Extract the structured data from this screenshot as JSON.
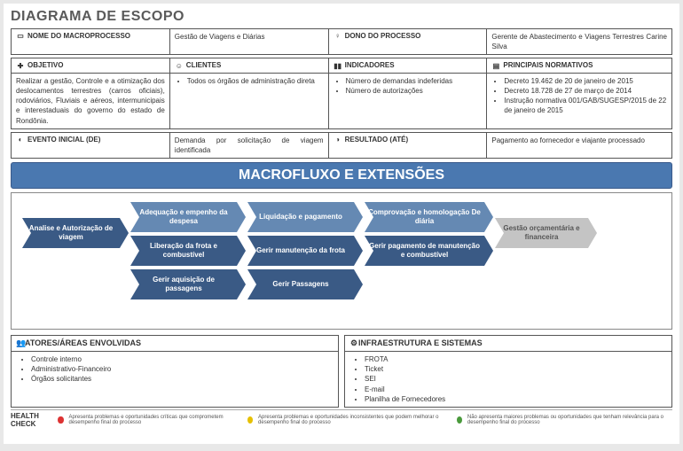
{
  "title": "DIAGRAMA DE ESCOPO",
  "row1": {
    "macro_label": "NOME DO MACROPROCESSO",
    "macro_value": "Gestão de Viagens e Diárias",
    "owner_label": "DONO DO PROCESSO",
    "owner_value": "Gerente de Abastecimento e Viagens Terrestres Carine Silva"
  },
  "row2_hdr": {
    "objetivo": "OBJETIVO",
    "clientes": "CLIENTES",
    "indicadores": "INDICADORES",
    "normativos": "PRINCIPAIS NORMATIVOS"
  },
  "row2_body": {
    "objetivo": "Realizar a gestão, Controle e a otimização dos deslocamentos terrestres (carros oficiais), rodoviários, Fluviais e aéreos, intermunicipais e interestaduais do governo do estado de Rondônia.",
    "clientes": [
      "Todos os órgãos de administração direta"
    ],
    "indicadores": [
      "Número de demandas indeferidas",
      "Número de autorizações"
    ],
    "normativos": [
      "Decreto 19.462 de 20 de janeiro de 2015",
      "Decreto 18.728 de 27 de março de 2014",
      "Instrução normativa 001/GAB/SUGESP/2015 de 22 de janeiro de 2015"
    ]
  },
  "row3": {
    "evento_label": "EVENTO INICIAL (DE)",
    "evento_value": "Demanda por solicitação de viagem identificada",
    "resultado_label": "RESULTADO (ATÉ)",
    "resultado_value": "Pagamento ao fornecedor e viajante processado"
  },
  "banner": "MACROFLUXO E EXTENSÕES",
  "flow": {
    "c0": "Analise e Autorização de viagem",
    "c1": [
      "Adequação e empenho da despesa",
      "Liberação da frota e combustível",
      "Gerir aquisição de passagens"
    ],
    "c2": [
      "Liquidação e pagamento",
      "Gerir manutenção da frota",
      "Gerir  Passagens"
    ],
    "c3": [
      "Comprovação e homologação De diária",
      "Gerir pagamento de manutenção e combustível"
    ],
    "c4": "Gestão orçamentária e financeira"
  },
  "bottom": {
    "atores_label": "ATORES/ÁREAS ENVOLVIDAS",
    "atores": [
      "Controle interno",
      "Administrativo-Financeiro",
      "Órgãos solicitantes"
    ],
    "infra_label": "INFRAESTRUTURA E SISTEMAS",
    "infra": [
      "FROTA",
      "Ticket",
      "SEI",
      "E-mail",
      "Planilha de Fornecedores"
    ]
  },
  "health": {
    "label": "HEALTH CHECK",
    "red": "Apresenta problemas e oportunidades críticas que comprometem desempenho final do processo",
    "yel": "Apresenta problemas e oportunidades inconsistentes que podem melhorar o desempenho final do processo",
    "grn": "Não apresenta maiores problemas ou oportunidades que tenham relevância para o desempenho final do processo"
  },
  "colors": {
    "arrow_dark": "#3a5a85",
    "arrow_light": "#6589b3",
    "arrow_gray": "#c4c4c4",
    "banner": "#4a78b0"
  }
}
